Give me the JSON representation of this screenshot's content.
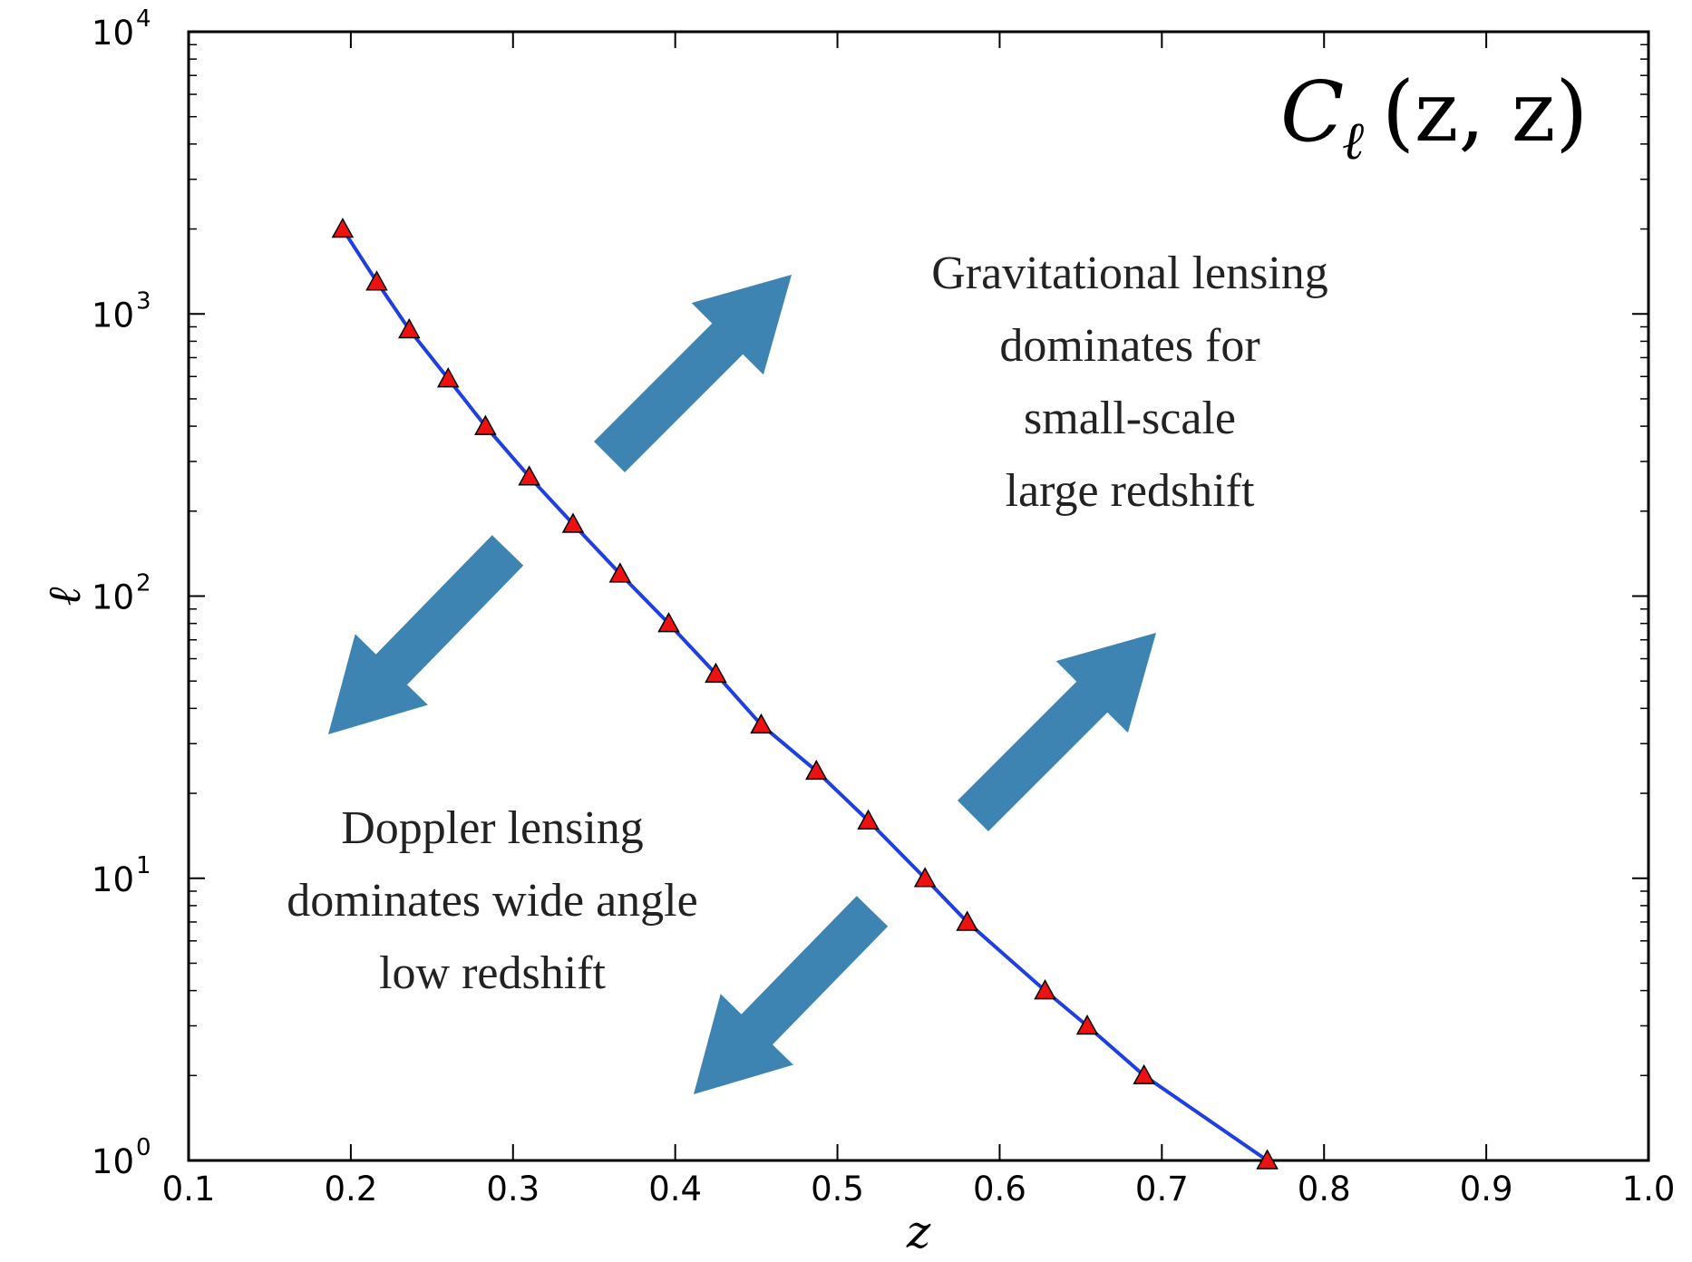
{
  "chart_data": {
    "type": "line",
    "title": {
      "symbol": "C",
      "subscript": "ℓ",
      "args": "(z, z)"
    },
    "xlabel": "z",
    "ylabel": "ℓ",
    "xlim": [
      0.1,
      1.0
    ],
    "ylim": [
      1,
      10000
    ],
    "yscale": "log",
    "x_ticks": [
      "0.1",
      "0.2",
      "0.3",
      "0.4",
      "0.5",
      "0.6",
      "0.7",
      "0.8",
      "0.9",
      "1.0"
    ],
    "y_ticks": [
      {
        "base": "10",
        "exp": "0"
      },
      {
        "base": "10",
        "exp": "1"
      },
      {
        "base": "10",
        "exp": "2"
      },
      {
        "base": "10",
        "exp": "3"
      },
      {
        "base": "10",
        "exp": "4"
      }
    ],
    "series": [
      {
        "name": "line",
        "color": "#1f3fe0",
        "x": [
          0.195,
          0.216,
          0.236,
          0.26,
          0.283,
          0.31,
          0.337,
          0.366,
          0.396,
          0.425,
          0.453,
          0.487,
          0.519,
          0.554,
          0.58,
          0.628,
          0.654,
          0.689,
          0.765
        ],
        "y": [
          2000,
          1300,
          880,
          590,
          400,
          265,
          180,
          120,
          80,
          53,
          35,
          24,
          16,
          10,
          7,
          4,
          3,
          2,
          1
        ]
      }
    ],
    "markers": {
      "shape": "triangle",
      "color": "#ee1111",
      "x": [
        0.195,
        0.216,
        0.236,
        0.26,
        0.283,
        0.31,
        0.337,
        0.366,
        0.396,
        0.425,
        0.453,
        0.487,
        0.519,
        0.554,
        0.58,
        0.628,
        0.654,
        0.689,
        0.765
      ],
      "y": [
        2000,
        1300,
        880,
        590,
        400,
        265,
        180,
        120,
        80,
        53,
        35,
        24,
        16,
        10,
        7,
        4,
        3,
        2,
        1
      ]
    },
    "annotations": {
      "gravitational": [
        "Gravitational lensing",
        "dominates for",
        "small-scale",
        "large redshift"
      ],
      "doppler": [
        "Doppler lensing",
        "dominates wide angle",
        "low redshift"
      ]
    },
    "arrows": [
      {
        "direction": "up-right",
        "color": "#3d84b3"
      },
      {
        "direction": "down-left",
        "color": "#3d84b3"
      },
      {
        "direction": "up-right",
        "color": "#3d84b3"
      },
      {
        "direction": "down-left",
        "color": "#3d84b3"
      }
    ]
  }
}
